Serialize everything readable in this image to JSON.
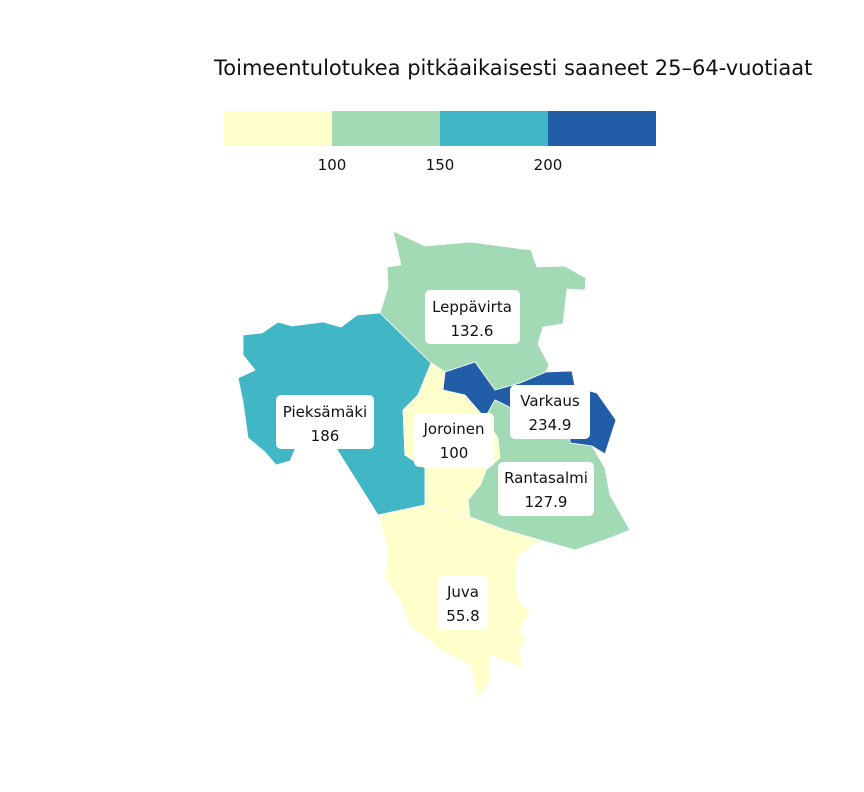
{
  "title": "Toimeentulotukea pitkäaikaisesti saaneet 25–64-vuotiaat",
  "legend": {
    "bins": [
      {
        "color": "#ffffcc"
      },
      {
        "color": "#a1dab4"
      },
      {
        "color": "#41b6c4"
      },
      {
        "color": "#225ea8"
      }
    ],
    "ticks": [
      "100",
      "150",
      "200"
    ]
  },
  "municipalities": [
    {
      "name": "Leppävirta",
      "value": "132.6",
      "color": "#a1dab4"
    },
    {
      "name": "Pieksämäki",
      "value": "186",
      "color": "#41b6c4"
    },
    {
      "name": "Joroinen",
      "value": "100",
      "color": "#ffffcc"
    },
    {
      "name": "Varkaus",
      "value": "234.9",
      "color": "#225ea8"
    },
    {
      "name": "Rantasalmi",
      "value": "127.9",
      "color": "#a1dab4"
    },
    {
      "name": "Juva",
      "value": "55.8",
      "color": "#ffffcc"
    }
  ]
}
